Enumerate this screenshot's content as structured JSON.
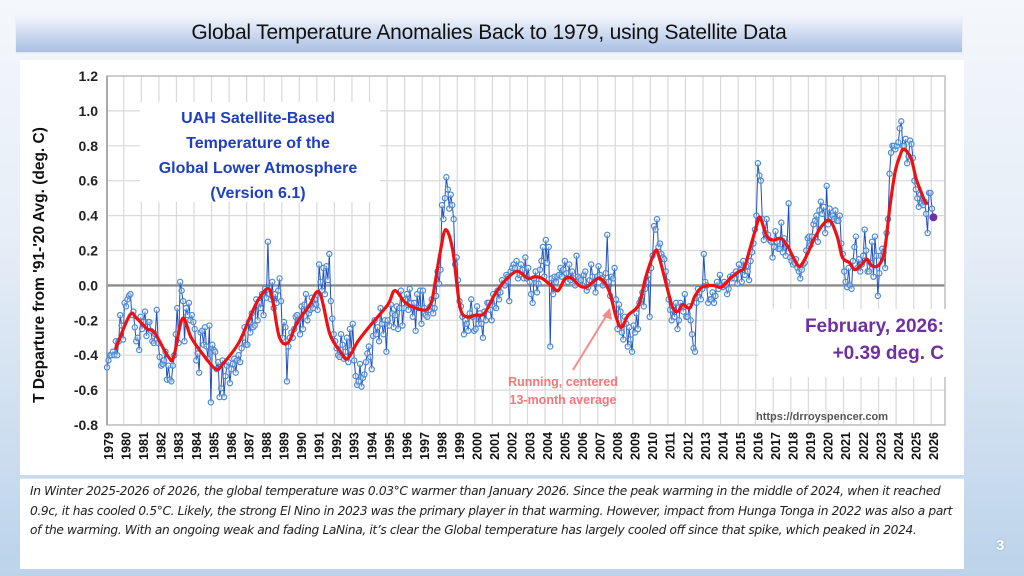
{
  "slide": {
    "title": "Global Temperature Anomalies Back to 1979, using Satellite Data",
    "page_number": "3",
    "caption": "In Winter 2025-2026 of 2026, the global temperature  was 0.03°C  warmer than January 2026.  Since the peak warming in the middle of 2024, when it reached 0.9c, it has cooled 0.5°C. Likely, the strong El Nino in 2023 was the primary player in that warming. However, impact from Hunga Tonga in 2022 was also a part of the warming. With an ongoing weak and fading LaNina, it’s clear the Global temperature has largely cooled off  since that spike, which peaked in 2024."
  },
  "chart_data": {
    "type": "line",
    "title": "UAH Satellite-Based Temperature of the Global Lower Atmosphere (Version 6.1)",
    "title_lines": [
      "UAH Satellite-Based",
      "Temperature of the",
      "Global Lower Atmosphere",
      "(Version 6.1)"
    ],
    "xlabel": "",
    "ylabel": "T Departure from '91-'20 Avg. (deg. C)",
    "ylim": [
      -0.8,
      1.2
    ],
    "yticks": [
      "1.2",
      "1.0",
      "0.8",
      "0.6",
      "0.4",
      "0.2",
      "0.0",
      "-0.2",
      "-0.4",
      "-0.6",
      "-0.8"
    ],
    "ytick_values": [
      1.2,
      1.0,
      0.8,
      0.6,
      0.4,
      0.2,
      0.0,
      -0.2,
      -0.4,
      -0.6,
      -0.8
    ],
    "xlim": [
      1979.0,
      2026.2
    ],
    "xticks": [
      "1979",
      "1980",
      "1981",
      "1982",
      "1983",
      "1984",
      "1985",
      "1986",
      "1987",
      "1988",
      "1989",
      "1990",
      "1991",
      "1992",
      "1993",
      "1994",
      "1995",
      "1996",
      "1997",
      "1998",
      "1999",
      "2000",
      "2001",
      "2002",
      "2003",
      "2004",
      "2005",
      "2006",
      "2007",
      "2008",
      "2009",
      "2010",
      "2011",
      "2012",
      "2013",
      "2014",
      "2015",
      "2016",
      "2017",
      "2018",
      "2019",
      "2020",
      "2021",
      "2022",
      "2023",
      "2024",
      "2025",
      "2026"
    ],
    "grid": true,
    "annotation_latest": {
      "line1": "February, 2026:",
      "line2": "+0.39 deg. C",
      "color": "#7030a0"
    },
    "annotation_avg": {
      "line1": "Running, centered",
      "line2": "13-month average",
      "color": "#f4777a"
    },
    "source": "https://drroyspencer.com",
    "colors": {
      "monthly": "#1f4fbf",
      "marker": "#4a8ad4",
      "running": "#ee1111",
      "latest_marker": "#7030a0",
      "arrow": "#f48a8a"
    },
    "series": [
      {
        "name": "Monthly anomaly",
        "start_year": 1979.0,
        "step": 0.08333,
        "values": [
          -0.47,
          -0.43,
          -0.4,
          -0.4,
          -0.38,
          -0.4,
          -0.32,
          -0.4,
          -0.32,
          -0.17,
          -0.23,
          -0.31,
          -0.1,
          -0.12,
          -0.08,
          -0.06,
          -0.05,
          -0.17,
          -0.15,
          -0.24,
          -0.32,
          -0.3,
          -0.37,
          -0.18,
          -0.25,
          -0.21,
          -0.15,
          -0.29,
          -0.21,
          -0.21,
          -0.26,
          -0.32,
          -0.33,
          -0.28,
          -0.14,
          -0.33,
          -0.41,
          -0.46,
          -0.45,
          -0.43,
          -0.38,
          -0.54,
          -0.46,
          -0.54,
          -0.55,
          -0.46,
          -0.4,
          -0.28,
          -0.13,
          -0.33,
          0.02,
          -0.03,
          -0.09,
          -0.32,
          -0.13,
          -0.17,
          -0.1,
          -0.2,
          -0.17,
          -0.21,
          -0.25,
          -0.43,
          -0.39,
          -0.5,
          -0.27,
          -0.26,
          -0.34,
          -0.24,
          -0.35,
          -0.42,
          -0.23,
          -0.67,
          -0.34,
          -0.37,
          -0.38,
          -0.48,
          -0.44,
          -0.64,
          -0.59,
          -0.43,
          -0.64,
          -0.52,
          -0.46,
          -0.44,
          -0.56,
          -0.48,
          -0.45,
          -0.42,
          -0.5,
          -0.43,
          -0.4,
          -0.44,
          -0.36,
          -0.3,
          -0.24,
          -0.34,
          -0.34,
          -0.21,
          -0.27,
          -0.16,
          -0.24,
          -0.23,
          -0.08,
          -0.2,
          -0.1,
          -0.13,
          -0.05,
          -0.17,
          -0.02,
          -0.07,
          0.25,
          -0.05,
          -0.08,
          0.02,
          -0.13,
          -0.05,
          -0.1,
          -0.03,
          0.04,
          -0.09,
          -0.3,
          -0.21,
          -0.24,
          -0.55,
          -0.35,
          -0.3,
          -0.27,
          -0.3,
          -0.25,
          -0.18,
          -0.17,
          -0.2,
          -0.28,
          -0.12,
          -0.25,
          -0.11,
          -0.05,
          -0.2,
          -0.16,
          -0.14,
          -0.07,
          -0.13,
          -0.08,
          -0.11,
          -0.14,
          0.12,
          0.02,
          -0.03,
          0.1,
          -0.05,
          0.11,
          0.03,
          0.18,
          -0.09,
          -0.19,
          -0.28,
          -0.32,
          -0.36,
          -0.4,
          -0.41,
          -0.28,
          -0.34,
          -0.42,
          -0.38,
          -0.3,
          -0.44,
          -0.25,
          -0.37,
          -0.22,
          -0.43,
          -0.52,
          -0.57,
          -0.55,
          -0.45,
          -0.58,
          -0.53,
          -0.51,
          -0.44,
          -0.39,
          -0.35,
          -0.41,
          -0.48,
          -0.29,
          -0.2,
          -0.28,
          -0.24,
          -0.32,
          -0.13,
          -0.22,
          -0.28,
          -0.2,
          -0.38,
          -0.2,
          -0.23,
          -0.11,
          -0.16,
          -0.24,
          -0.17,
          -0.12,
          -0.25,
          -0.13,
          -0.03,
          -0.23,
          -0.13,
          -0.08,
          -0.05,
          -0.14,
          -0.02,
          -0.1,
          -0.18,
          -0.1,
          -0.26,
          -0.05,
          -0.13,
          -0.03,
          -0.22,
          -0.03,
          -0.13,
          -0.17,
          -0.18,
          -0.14,
          -0.12,
          -0.08,
          -0.16,
          -0.13,
          -0.06,
          0.08,
          0.01,
          0.09,
          0.46,
          0.38,
          0.5,
          0.62,
          0.55,
          0.44,
          0.52,
          0.46,
          0.38,
          0.12,
          0.16,
          0.03,
          -0.09,
          -0.12,
          -0.18,
          -0.28,
          -0.2,
          -0.22,
          -0.26,
          -0.16,
          -0.08,
          -0.18,
          -0.26,
          -0.25,
          -0.12,
          -0.22,
          -0.16,
          -0.22,
          -0.3,
          -0.15,
          -0.2,
          -0.1,
          -0.1,
          -0.14,
          -0.2,
          -0.05,
          -0.12,
          -0.13,
          -0.03,
          -0.08,
          -0.04,
          0.03,
          0.01,
          0.0,
          0.06,
          0.05,
          -0.09,
          0.08,
          0.1,
          0.12,
          0.1,
          0.14,
          0.04,
          0.06,
          0.12,
          0.09,
          0.04,
          0.16,
          0.04,
          0.1,
          0.02,
          -0.05,
          -0.1,
          0.04,
          0.08,
          -0.04,
          0.01,
          0.09,
          0.14,
          0.22,
          0.05,
          0.26,
          0.13,
          0.22,
          -0.35,
          0.04,
          -0.05,
          0.05,
          0.02,
          0.05,
          0.06,
          0.1,
          0.05,
          0.09,
          0.14,
          0.07,
          0.02,
          0.12,
          0.03,
          0.08,
          0.04,
          0.0,
          0.17,
          0.05,
          0.04,
          0.03,
          0.0,
          0.06,
          0.08,
          -0.03,
          -0.01,
          0.03,
          0.12,
          0.05,
          0.02,
          -0.04,
          0.05,
          0.11,
          0.06,
          0.04,
          0.0,
          0.02,
          0.07,
          0.29,
          0.02,
          -0.06,
          0.05,
          0.04,
          0.1,
          -0.08,
          -0.25,
          -0.11,
          -0.15,
          -0.27,
          -0.31,
          -0.18,
          -0.22,
          -0.35,
          -0.24,
          -0.31,
          -0.38,
          -0.23,
          -0.27,
          -0.16,
          -0.25,
          -0.1,
          -0.08,
          -0.04,
          -0.12,
          -0.02,
          0.02,
          0.06,
          -0.18,
          0.1,
          0.17,
          0.34,
          0.32,
          0.38,
          0.22,
          0.24,
          0.18,
          0.16,
          0.15,
          0.08,
          0.02,
          -0.08,
          -0.14,
          -0.2,
          -0.14,
          -0.18,
          -0.1,
          -0.25,
          -0.2,
          -0.1,
          -0.12,
          -0.15,
          -0.05,
          -0.18,
          -0.18,
          -0.12,
          -0.2,
          -0.28,
          -0.36,
          -0.38,
          -0.1,
          -0.02,
          -0.04,
          -0.08,
          -0.02,
          0.18,
          0.02,
          0.0,
          -0.1,
          -0.08,
          -0.08,
          -0.04,
          -0.1,
          -0.06,
          0.02,
          -0.02,
          0.06,
          0.0,
          -0.01,
          0.02,
          0.0,
          -0.05,
          -0.02,
          0.05,
          0.04,
          0.06,
          0.04,
          0.08,
          0.01,
          0.12,
          0.09,
          0.02,
          0.14,
          0.06,
          0.11,
          0.08,
          0.03,
          0.14,
          0.19,
          0.24,
          0.32,
          0.4,
          0.7,
          0.63,
          0.6,
          0.38,
          0.26,
          0.3,
          0.38,
          0.29,
          0.26,
          0.25,
          0.16,
          0.22,
          0.31,
          0.25,
          0.21,
          0.21,
          0.36,
          0.19,
          0.27,
          0.17,
          0.24,
          0.47,
          0.16,
          0.14,
          0.12,
          0.13,
          0.15,
          0.1,
          0.08,
          0.04,
          0.09,
          0.12,
          0.13,
          0.2,
          0.27,
          0.28,
          0.23,
          0.28,
          0.35,
          0.37,
          0.4,
          0.25,
          0.43,
          0.48,
          0.41,
          0.45,
          0.3,
          0.57,
          0.35,
          0.44,
          0.39,
          0.4,
          0.38,
          0.43,
          0.37,
          0.37,
          0.4,
          0.24,
          0.18,
          0.08,
          0.02,
          -0.01,
          0.1,
          0.0,
          -0.02,
          0.14,
          0.22,
          0.28,
          0.1,
          0.15,
          0.08,
          0.12,
          0.17,
          0.32,
          0.2,
          0.08,
          0.08,
          0.13,
          0.25,
          0.05,
          0.28,
          0.17,
          -0.06,
          0.07,
          0.17,
          0.21,
          0.19,
          0.1,
          0.3,
          0.38,
          0.64,
          0.76,
          0.8,
          0.8,
          0.78,
          0.8,
          0.82,
          0.9,
          0.94,
          0.8,
          0.8,
          0.84,
          0.7,
          0.74,
          0.83,
          0.81,
          0.73,
          0.6,
          0.55,
          0.5,
          0.45,
          0.52,
          0.47,
          0.46,
          0.48,
          0.41,
          0.3,
          0.53,
          0.53,
          0.44,
          0.39
        ]
      },
      {
        "name": "Running, centered 13-month average",
        "start_year": 1979.5,
        "step": 0.08333,
        "values_note": "approximate smoothed curve read from figure",
        "keypoints": [
          [
            1979.5,
            -0.36
          ],
          [
            1980.3,
            -0.17
          ],
          [
            1980.7,
            -0.19
          ],
          [
            1981.3,
            -0.25
          ],
          [
            1981.7,
            -0.27
          ],
          [
            1982.5,
            -0.41
          ],
          [
            1982.8,
            -0.41
          ],
          [
            1983.3,
            -0.19
          ],
          [
            1983.8,
            -0.3
          ],
          [
            1984.5,
            -0.4
          ],
          [
            1985.2,
            -0.48
          ],
          [
            1985.6,
            -0.45
          ],
          [
            1986.5,
            -0.33
          ],
          [
            1987.2,
            -0.17
          ],
          [
            1987.7,
            -0.07
          ],
          [
            1988.3,
            -0.03
          ],
          [
            1988.8,
            -0.29
          ],
          [
            1989.3,
            -0.33
          ],
          [
            1989.8,
            -0.22
          ],
          [
            1990.5,
            -0.12
          ],
          [
            1991.1,
            -0.04
          ],
          [
            1991.7,
            -0.28
          ],
          [
            1992.3,
            -0.38
          ],
          [
            1992.7,
            -0.42
          ],
          [
            1993.3,
            -0.32
          ],
          [
            1994.0,
            -0.23
          ],
          [
            1995.0,
            -0.11
          ],
          [
            1995.4,
            -0.03
          ],
          [
            1996.0,
            -0.1
          ],
          [
            1996.6,
            -0.13
          ],
          [
            1997.2,
            -0.14
          ],
          [
            1997.5,
            -0.09
          ],
          [
            1997.7,
            0.02
          ],
          [
            1998.0,
            0.2
          ],
          [
            1998.3,
            0.32
          ],
          [
            1998.7,
            0.2
          ],
          [
            1999.1,
            -0.12
          ],
          [
            1999.5,
            -0.18
          ],
          [
            2000.0,
            -0.17
          ],
          [
            2000.5,
            -0.16
          ],
          [
            2001.1,
            -0.05
          ],
          [
            2001.7,
            0.03
          ],
          [
            2002.3,
            0.08
          ],
          [
            2002.6,
            0.07
          ],
          [
            2003.0,
            0.04
          ],
          [
            2003.4,
            0.05
          ],
          [
            2003.8,
            0.04
          ],
          [
            2004.3,
            0.0
          ],
          [
            2004.7,
            -0.03
          ],
          [
            2005.1,
            0.04
          ],
          [
            2005.5,
            0.04
          ],
          [
            2005.9,
            0.0
          ],
          [
            2006.3,
            -0.01
          ],
          [
            2006.7,
            0.02
          ],
          [
            2007.1,
            0.04
          ],
          [
            2007.6,
            -0.03
          ],
          [
            2008.0,
            -0.18
          ],
          [
            2008.3,
            -0.24
          ],
          [
            2008.7,
            -0.17
          ],
          [
            2009.3,
            -0.11
          ],
          [
            2009.7,
            0.05
          ],
          [
            2010.2,
            0.19
          ],
          [
            2010.4,
            0.18
          ],
          [
            2010.8,
            0.03
          ],
          [
            2011.2,
            -0.12
          ],
          [
            2011.5,
            -0.15
          ],
          [
            2011.8,
            -0.11
          ],
          [
            2012.2,
            -0.13
          ],
          [
            2012.5,
            -0.06
          ],
          [
            2012.9,
            -0.01
          ],
          [
            2013.5,
            0.0
          ],
          [
            2014.0,
            -0.01
          ],
          [
            2014.5,
            0.04
          ],
          [
            2015.0,
            0.08
          ],
          [
            2015.3,
            0.1
          ],
          [
            2015.6,
            0.2
          ],
          [
            2016.0,
            0.34
          ],
          [
            2016.2,
            0.39
          ],
          [
            2016.6,
            0.28
          ],
          [
            2017.0,
            0.26
          ],
          [
            2017.4,
            0.27
          ],
          [
            2017.8,
            0.22
          ],
          [
            2018.2,
            0.14
          ],
          [
            2018.5,
            0.11
          ],
          [
            2018.9,
            0.18
          ],
          [
            2019.3,
            0.27
          ],
          [
            2019.8,
            0.35
          ],
          [
            2020.2,
            0.37
          ],
          [
            2020.6,
            0.28
          ],
          [
            2020.9,
            0.16
          ],
          [
            2021.3,
            0.13
          ],
          [
            2021.6,
            0.09
          ],
          [
            2022.0,
            0.12
          ],
          [
            2022.3,
            0.15
          ],
          [
            2022.6,
            0.11
          ],
          [
            2023.0,
            0.12
          ],
          [
            2023.3,
            0.2
          ],
          [
            2023.6,
            0.45
          ],
          [
            2023.9,
            0.65
          ],
          [
            2024.2,
            0.75
          ],
          [
            2024.4,
            0.78
          ],
          [
            2024.8,
            0.73
          ],
          [
            2025.1,
            0.61
          ],
          [
            2025.4,
            0.53
          ],
          [
            2025.6,
            0.48
          ],
          [
            2025.7,
            0.47
          ]
        ]
      }
    ],
    "latest_point": {
      "label": "February 2026",
      "year": 2026.08,
      "value": 0.39
    }
  }
}
